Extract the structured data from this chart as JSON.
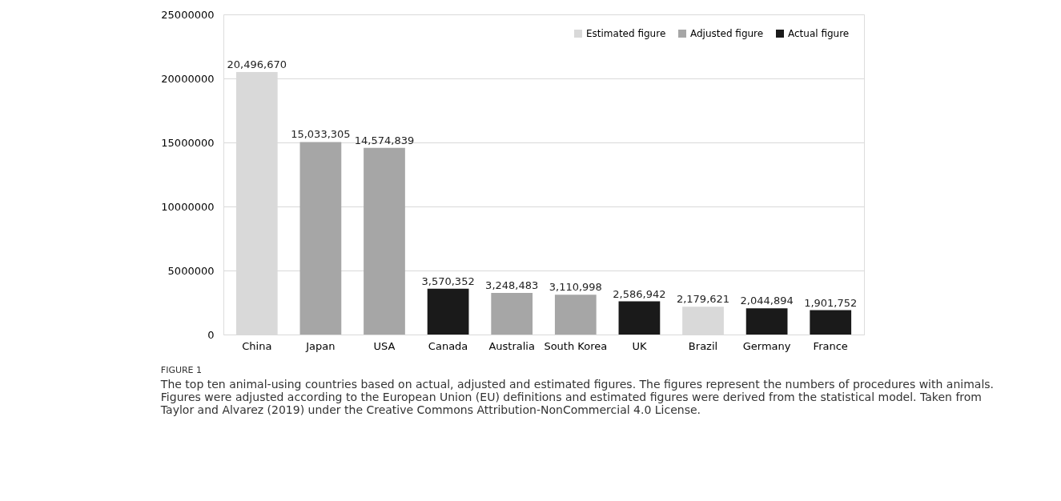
{
  "chart_data": {
    "type": "bar",
    "categories": [
      "China",
      "Japan",
      "USA",
      "Canada",
      "Australia",
      "South Korea",
      "UK",
      "Brazil",
      "Germany",
      "France"
    ],
    "series": [
      {
        "name": "Estimated figure",
        "color": "#d9d9d9",
        "values": [
          20496670,
          null,
          null,
          null,
          null,
          null,
          null,
          2179621,
          null,
          null
        ],
        "value_labels": [
          "20,496,670",
          null,
          null,
          null,
          null,
          null,
          null,
          "2,179,621",
          null,
          null
        ]
      },
      {
        "name": "Adjusted figure",
        "color": "#a6a6a6",
        "values": [
          null,
          15033305,
          14574839,
          null,
          3248483,
          3110998,
          null,
          null,
          null,
          null
        ],
        "value_labels": [
          null,
          "15,033,305",
          "14,574,839",
          null,
          "3,248,483",
          "3,110,998",
          null,
          null,
          null,
          null
        ]
      },
      {
        "name": "Actual figure",
        "color": "#1a1a1a",
        "values": [
          null,
          null,
          null,
          3570352,
          null,
          null,
          2586942,
          null,
          2044894,
          1901752
        ],
        "value_labels": [
          null,
          null,
          null,
          "3,570,352",
          null,
          null,
          "2,586,942",
          null,
          "2,044,894",
          "1,901,752"
        ]
      }
    ],
    "ylim": [
      0,
      25000000
    ],
    "yticks": [
      0,
      5000000,
      10000000,
      15000000,
      20000000,
      25000000
    ],
    "grid": "y",
    "legend": "top right",
    "annotations": [
      "FIGURE 1",
      "The top ten animal-using countries based on actual, adjusted and estimated figures. The figures represent the numbers of procedures with animals. Figures were adjusted according to the European Union (EU) definitions and estimated figures were derived from the statistical model. Taken from Taylor and Alvarez (2019) under the Creative Commons Attribution-NonCommercial 4.0 License."
    ]
  }
}
